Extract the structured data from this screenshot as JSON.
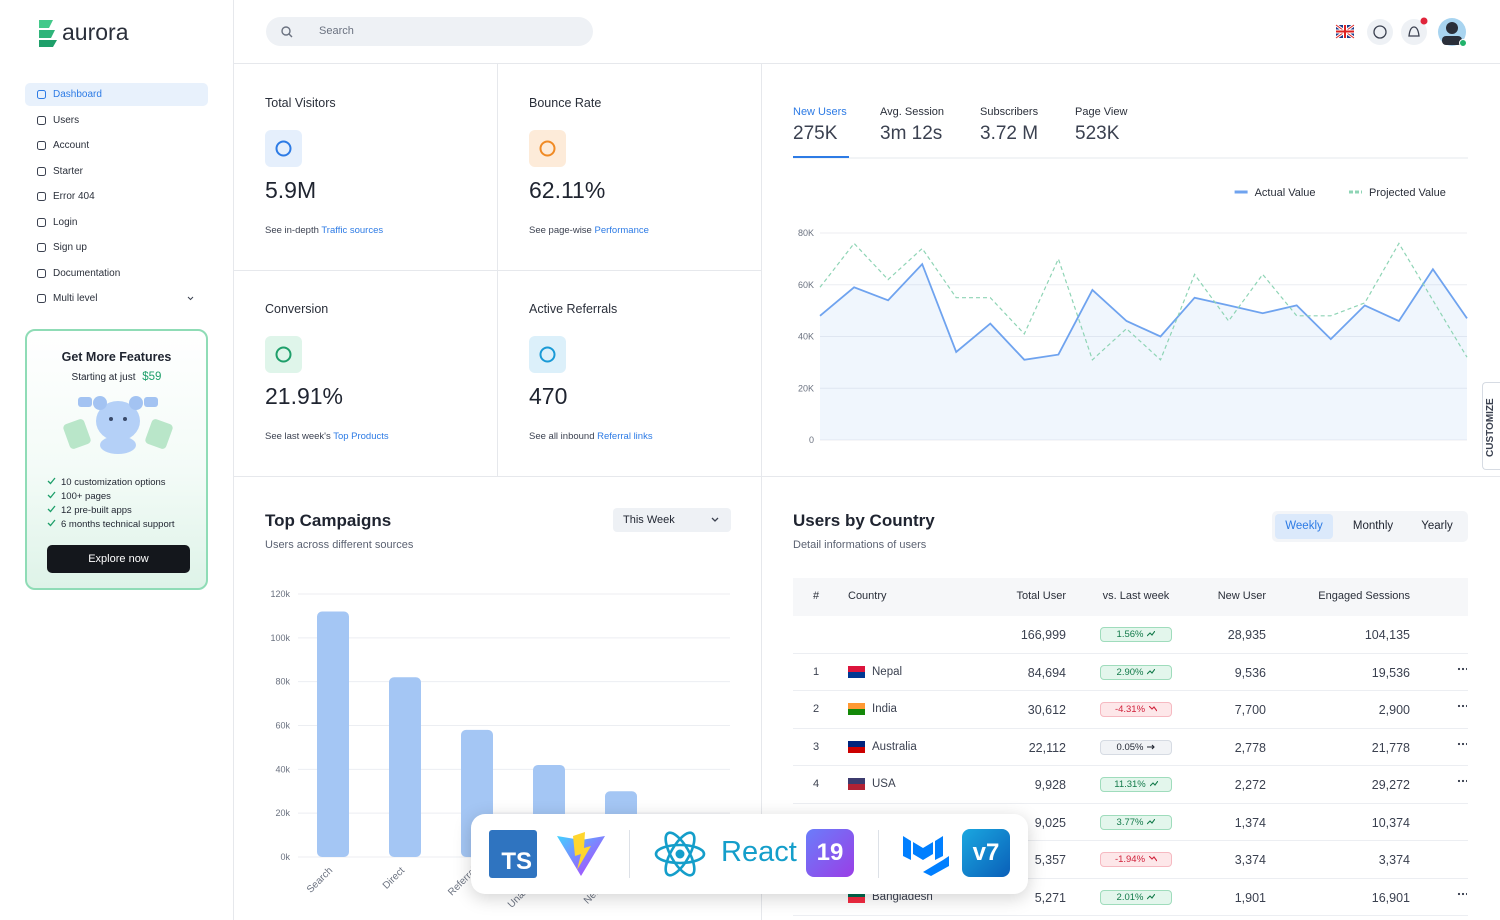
{
  "sidebar": {
    "brand": "aurora",
    "nav": [
      "Dashboard",
      "Users",
      "Account",
      "Starter",
      "Error 404",
      "Login",
      "Sign up",
      "Documentation",
      "Multi level"
    ],
    "promo": {
      "title": "Get More Features",
      "subtitle": "Starting at just",
      "price": "$59",
      "features": [
        "10 customization options",
        "100+ pages",
        "12 pre-built apps",
        "6 months technical support"
      ],
      "button": "Explore now"
    }
  },
  "header": {
    "search": "Search"
  },
  "stats": [
    {
      "title": "Total Visitors",
      "value": "5.9M",
      "note": "See in-depth",
      "link": "Traffic sources"
    },
    {
      "title": "Bounce Rate",
      "value": "62.11%",
      "note": "See page-wise",
      "link": "Performance"
    },
    {
      "title": "Conversion",
      "value": "21.91%",
      "note": "See last week's",
      "link": "Top Products"
    },
    {
      "title": "Active Referrals",
      "value": "470",
      "note": "See all inbound",
      "link": "Referral links"
    }
  ],
  "tabs": [
    {
      "label": "New Users",
      "value": "275K"
    },
    {
      "label": "Avg. Session",
      "value": "3m 12s"
    },
    {
      "label": "Subscribers",
      "value": "3.72 M"
    },
    {
      "label": "Page View",
      "value": "523K"
    }
  ],
  "chart_data": [
    {
      "type": "line",
      "series": [
        {
          "name": "Actual Value",
          "color": "#6fa3ef",
          "area": true,
          "values": [
            48000,
            59000,
            54000,
            68000,
            34000,
            45000,
            31000,
            33000,
            58000,
            46000,
            40000,
            55000,
            52000,
            49000,
            52000,
            39000,
            52000,
            46000,
            66000,
            47000
          ]
        },
        {
          "name": "Projected Value",
          "color": "#8ed4b5",
          "dashed": true,
          "values": [
            59000,
            76000,
            62000,
            74000,
            55000,
            55000,
            41000,
            70000,
            31000,
            43000,
            31000,
            64000,
            46000,
            64000,
            48000,
            48000,
            53000,
            76000,
            54000,
            32000
          ]
        }
      ],
      "ylim": [
        0,
        80000
      ],
      "yticks": [
        0,
        {
          "value": 20000,
          "label": "20K"
        },
        {
          "value": 40000,
          "label": "40K"
        },
        {
          "value": 60000,
          "label": "60K"
        },
        {
          "value": 80000,
          "label": "80K"
        }
      ],
      "grid": true,
      "legend": "top-right"
    },
    {
      "type": "bar",
      "title": "Top Campaigns",
      "subtitle": "Users across different sources",
      "filter": "This Week",
      "categories": [
        "Search",
        "Direct",
        "Referral",
        "Unassigned",
        "Newsletter"
      ],
      "values": [
        112000,
        82000,
        58000,
        42000,
        30000
      ],
      "color": "#a4c6f4",
      "ylim": [
        0,
        120000
      ],
      "yticks": [
        {
          "value": 0,
          "label": "0k"
        },
        {
          "value": 20000,
          "label": "20k"
        },
        {
          "value": 40000,
          "label": "40k"
        },
        {
          "value": 60000,
          "label": "60k"
        },
        {
          "value": 80000,
          "label": "80k"
        },
        {
          "value": 100000,
          "label": "100k"
        },
        {
          "value": 120000,
          "label": "120k"
        }
      ],
      "grid": true
    }
  ],
  "country_table": {
    "title": "Users by Country",
    "subtitle": "Detail informations of users",
    "periods": [
      "Weekly",
      "Monthly",
      "Yearly"
    ],
    "columns": [
      "#",
      "Country",
      "Total User",
      "vs. Last week",
      "New User",
      "Engaged Sessions"
    ],
    "rows": [
      [
        null,
        null,
        "166,999",
        "1.56%",
        "28,935",
        "104,135"
      ],
      [
        "1",
        "Nepal",
        "84,694",
        "2.90%",
        "9,536",
        "19,536"
      ],
      [
        "2",
        "India",
        "30,612",
        "-4.31%",
        "7,700",
        "2,900"
      ],
      [
        "3",
        "Australia",
        "22,112",
        "0.05%",
        "2,778",
        "21,778"
      ],
      [
        "4",
        "USA",
        "9,928",
        "11.31%",
        "2,272",
        "29,272"
      ],
      [
        null,
        null,
        "9,025",
        "3.77%",
        "1,374",
        "10,374"
      ],
      [
        null,
        null,
        "5,357",
        "-1.94%",
        "3,374",
        "3,374"
      ],
      [
        null,
        "Bangladesh",
        "5,271",
        "2.01%",
        "1,901",
        "16,901"
      ]
    ]
  },
  "tech_badge": {
    "ts": "TS",
    "react": "React",
    "react_version": "19",
    "mui_version": "v7"
  },
  "customize": "CUSTOMIZE"
}
